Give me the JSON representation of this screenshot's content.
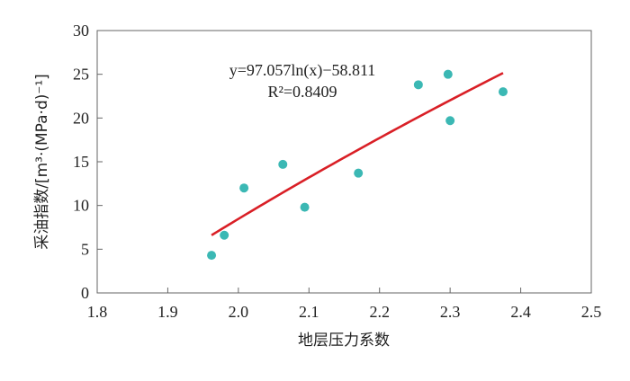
{
  "chart_data": {
    "type": "scatter",
    "title": "",
    "xlabel": "地层压力系数",
    "ylabel": "采油指数/[m³·(MPa·d)⁻¹]",
    "xlim": [
      1.8,
      2.5
    ],
    "ylim": [
      0,
      30
    ],
    "xticks": [
      "1.8",
      "1.9",
      "2.0",
      "2.1",
      "2.2",
      "2.3",
      "2.4",
      "2.5"
    ],
    "yticks": [
      "0",
      "5",
      "10",
      "15",
      "20",
      "25",
      "30"
    ],
    "grid": false,
    "points": [
      {
        "x": 1.962,
        "y": 4.3
      },
      {
        "x": 1.98,
        "y": 6.6
      },
      {
        "x": 2.008,
        "y": 12.0
      },
      {
        "x": 2.063,
        "y": 14.7
      },
      {
        "x": 2.094,
        "y": 9.8
      },
      {
        "x": 2.17,
        "y": 13.7
      },
      {
        "x": 2.255,
        "y": 23.8
      },
      {
        "x": 2.297,
        "y": 25.0
      },
      {
        "x": 2.3,
        "y": 19.7
      },
      {
        "x": 2.375,
        "y": 23.0
      }
    ],
    "point_color": "#3bb8b4",
    "trendline": {
      "type": "log",
      "a": 97.057,
      "b": -58.811,
      "x_range": [
        1.962,
        2.375
      ],
      "color": "#d91f26",
      "equation": "y=97.057ln(x)−58.811",
      "r2": "R²=0.8409"
    }
  }
}
